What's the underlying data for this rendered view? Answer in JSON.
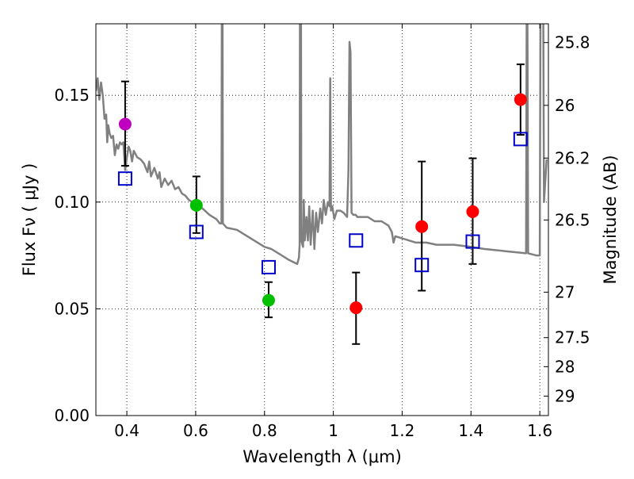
{
  "chart_data": {
    "type": "scatter",
    "title": "",
    "xlabel": "Wavelength  λ (μm)",
    "ylabel": "Flux  Fν  ( μJy )",
    "ylabel_right": "Magnitude (AB)",
    "xlim": [
      0.31,
      1.625
    ],
    "ylim": [
      0.0,
      0.1835
    ],
    "grid": true,
    "x_ticks": [
      0.4,
      0.6,
      0.8,
      1.0,
      1.2,
      1.4,
      1.6
    ],
    "x_tick_labels": [
      "0.4",
      "0.6",
      "0.8",
      "1",
      "1.2",
      "1.4",
      "1.6"
    ],
    "y_ticks": [
      0.0,
      0.05,
      0.1,
      0.15
    ],
    "y_tick_labels": [
      "0.00",
      "0.05",
      "0.10",
      "0.15"
    ],
    "right_ticks": [
      {
        "label": "25.8",
        "flux": 0.1747
      },
      {
        "label": "26",
        "flux": 0.1453
      },
      {
        "label": "26.2",
        "flux": 0.1206
      },
      {
        "label": "26.5",
        "flux": 0.0916
      },
      {
        "label": "27",
        "flux": 0.0578
      },
      {
        "label": "27.5",
        "flux": 0.0365
      },
      {
        "label": "28",
        "flux": 0.0229
      },
      {
        "label": "29",
        "flux": 0.0091
      }
    ],
    "colors": {
      "sed": "#808080",
      "model": "#0000cc",
      "violet": "#bf00bf",
      "green": "#00c000",
      "red": "#ff0000",
      "errorbar": "#000000"
    },
    "series": [
      {
        "name": "model SED",
        "kind": "line",
        "color_key": "sed",
        "points": [
          [
            0.31,
            0.152
          ],
          [
            0.315,
            0.158
          ],
          [
            0.32,
            0.148
          ],
          [
            0.325,
            0.156
          ],
          [
            0.33,
            0.15
          ],
          [
            0.335,
            0.139
          ],
          [
            0.34,
            0.141
          ],
          [
            0.343,
            0.128
          ],
          [
            0.346,
            0.136
          ],
          [
            0.35,
            0.132
          ],
          [
            0.355,
            0.13
          ],
          [
            0.36,
            0.131
          ],
          [
            0.365,
            0.122
          ],
          [
            0.37,
            0.127
          ],
          [
            0.375,
            0.125
          ],
          [
            0.38,
            0.128
          ],
          [
            0.385,
            0.127
          ],
          [
            0.39,
            0.128
          ],
          [
            0.395,
            0.115
          ],
          [
            0.4,
            0.121
          ],
          [
            0.405,
            0.126
          ],
          [
            0.41,
            0.124
          ],
          [
            0.415,
            0.119
          ],
          [
            0.42,
            0.124
          ],
          [
            0.43,
            0.121
          ],
          [
            0.44,
            0.12
          ],
          [
            0.45,
            0.118
          ],
          [
            0.46,
            0.114
          ],
          [
            0.465,
            0.119
          ],
          [
            0.47,
            0.112
          ],
          [
            0.48,
            0.116
          ],
          [
            0.49,
            0.111
          ],
          [
            0.495,
            0.114
          ],
          [
            0.5,
            0.107
          ],
          [
            0.51,
            0.111
          ],
          [
            0.52,
            0.108
          ],
          [
            0.53,
            0.11
          ],
          [
            0.54,
            0.106
          ],
          [
            0.55,
            0.107
          ],
          [
            0.56,
            0.104
          ],
          [
            0.57,
            0.103
          ],
          [
            0.58,
            0.101
          ],
          [
            0.6,
            0.099
          ],
          [
            0.62,
            0.097
          ],
          [
            0.64,
            0.094
          ],
          [
            0.66,
            0.092
          ],
          [
            0.67,
            0.09
          ],
          [
            0.675,
            0.09
          ],
          [
            0.676,
            0.19
          ],
          [
            0.678,
            0.19
          ],
          [
            0.679,
            0.09
          ],
          [
            0.69,
            0.088
          ],
          [
            0.72,
            0.087
          ],
          [
            0.75,
            0.084
          ],
          [
            0.78,
            0.081
          ],
          [
            0.8,
            0.079
          ],
          [
            0.82,
            0.078
          ],
          [
            0.85,
            0.075
          ],
          [
            0.87,
            0.073
          ],
          [
            0.895,
            0.071
          ],
          [
            0.9,
            0.074
          ],
          [
            0.902,
            0.08
          ],
          [
            0.903,
            0.19
          ],
          [
            0.906,
            0.19
          ],
          [
            0.907,
            0.082
          ],
          [
            0.912,
            0.079
          ],
          [
            0.914,
            0.101
          ],
          [
            0.917,
            0.082
          ],
          [
            0.922,
            0.093
          ],
          [
            0.926,
            0.082
          ],
          [
            0.93,
            0.098
          ],
          [
            0.934,
            0.08
          ],
          [
            0.94,
            0.096
          ],
          [
            0.945,
            0.078
          ],
          [
            0.95,
            0.095
          ],
          [
            0.955,
            0.086
          ],
          [
            0.962,
            0.097
          ],
          [
            0.967,
            0.09
          ],
          [
            0.972,
            0.101
          ],
          [
            0.978,
            0.094
          ],
          [
            0.984,
            0.1
          ],
          [
            0.989,
            0.098
          ],
          [
            0.991,
            0.158
          ],
          [
            0.993,
            0.096
          ],
          [
            0.997,
            0.098
          ],
          [
            1.003,
            0.092
          ],
          [
            1.01,
            0.096
          ],
          [
            1.02,
            0.096
          ],
          [
            1.03,
            0.095
          ],
          [
            1.04,
            0.093
          ],
          [
            1.044,
            0.115
          ],
          [
            1.047,
            0.175
          ],
          [
            1.05,
            0.17
          ],
          [
            1.053,
            0.095
          ],
          [
            1.058,
            0.094
          ],
          [
            1.065,
            0.094
          ],
          [
            1.07,
            0.093
          ],
          [
            1.1,
            0.093
          ],
          [
            1.12,
            0.091
          ],
          [
            1.14,
            0.091
          ],
          [
            1.16,
            0.089
          ],
          [
            1.17,
            0.086
          ],
          [
            1.175,
            0.081
          ],
          [
            1.18,
            0.084
          ],
          [
            1.2,
            0.083
          ],
          [
            1.22,
            0.082
          ],
          [
            1.24,
            0.081
          ],
          [
            1.27,
            0.081
          ],
          [
            1.3,
            0.08
          ],
          [
            1.35,
            0.08
          ],
          [
            1.4,
            0.079
          ],
          [
            1.44,
            0.078
          ],
          [
            1.5,
            0.077
          ],
          [
            1.56,
            0.076
          ],
          [
            1.562,
            0.19
          ],
          [
            1.564,
            0.19
          ],
          [
            1.566,
            0.076
          ],
          [
            1.59,
            0.075
          ],
          [
            1.6,
            0.075
          ],
          [
            1.602,
            0.19
          ],
          [
            1.61,
            0.19
          ],
          [
            1.612,
            0.1
          ],
          [
            1.62,
            0.12
          ]
        ]
      },
      {
        "name": "model photometry",
        "kind": "open-square",
        "color_key": "model",
        "x": [
          0.395,
          0.602,
          0.812,
          1.066,
          1.257,
          1.405,
          1.544
        ],
        "y": [
          0.111,
          0.086,
          0.0695,
          0.082,
          0.0705,
          0.0815,
          0.1295
        ]
      },
      {
        "name": "observed (violet)",
        "kind": "filled-circle",
        "color_key": "violet",
        "x": [
          0.395
        ],
        "y": [
          0.1365
        ],
        "err_low": [
          0.117
        ],
        "err_high": [
          0.1565
        ]
      },
      {
        "name": "observed (green)",
        "kind": "filled-circle",
        "color_key": "green",
        "x": [
          0.602,
          0.812
        ],
        "y": [
          0.0985,
          0.054
        ],
        "err_low": [
          0.0855,
          0.046
        ],
        "err_high": [
          0.112,
          0.0625
        ]
      },
      {
        "name": "observed (red)",
        "kind": "filled-circle",
        "color_key": "red",
        "x": [
          1.066,
          1.257,
          1.405,
          1.544
        ],
        "y": [
          0.0505,
          0.0885,
          0.0955,
          0.148
        ],
        "err_low": [
          0.0335,
          0.0585,
          0.071,
          0.1315
        ],
        "err_high": [
          0.067,
          0.119,
          0.1205,
          0.1645
        ]
      }
    ]
  }
}
